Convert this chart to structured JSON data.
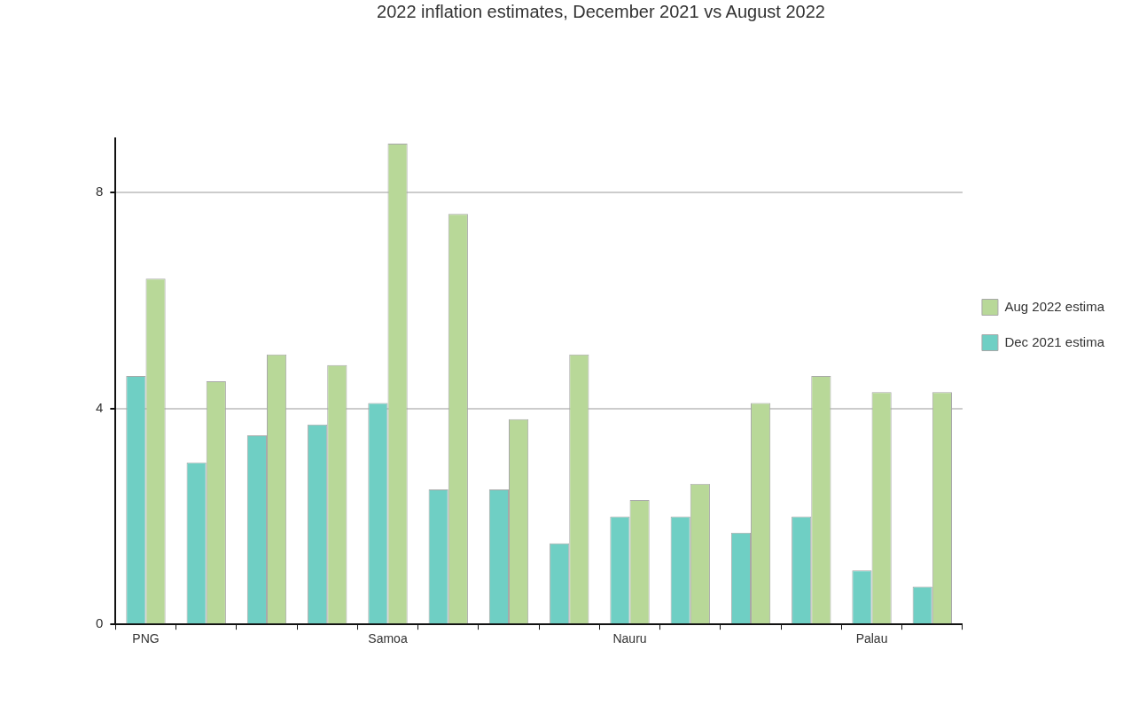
{
  "chart_data": {
    "type": "bar",
    "title": "2022 inflation estimates, December 2021 vs August 2022",
    "categories": [
      "PNG",
      null,
      null,
      null,
      "Samoa",
      null,
      null,
      null,
      "Nauru",
      null,
      null,
      null,
      "Palau",
      null
    ],
    "series": [
      {
        "name": "Dec 2021 estima",
        "color": "#6fcfc4",
        "values": [
          4.6,
          3.0,
          3.5,
          3.7,
          4.1,
          2.5,
          2.5,
          1.5,
          2.0,
          2.0,
          1.7,
          2.0,
          1.0,
          0.7
        ]
      },
      {
        "name": "Aug 2022 estima",
        "color": "#b8d898",
        "values": [
          6.4,
          4.5,
          5.0,
          4.8,
          8.9,
          7.6,
          3.8,
          5.0,
          2.3,
          2.6,
          4.1,
          4.6,
          4.3,
          4.3
        ]
      }
    ],
    "ylim": [
      0,
      9
    ],
    "yticks": [
      0,
      4,
      8
    ],
    "grid": "y",
    "legend": "right"
  }
}
